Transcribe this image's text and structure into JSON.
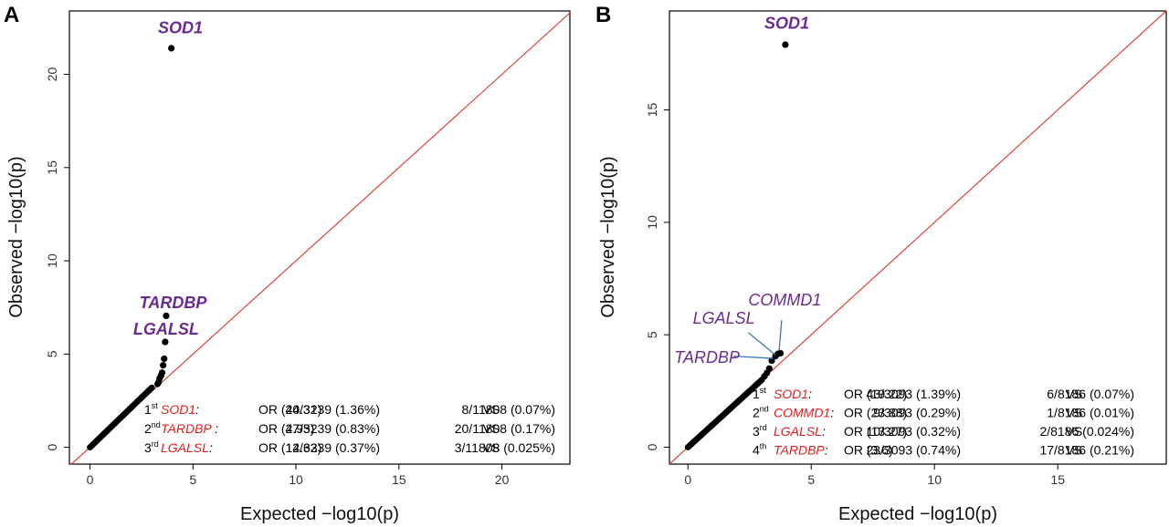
{
  "chart_data": [
    {
      "type": "scatter",
      "panel_label": "A",
      "xlabel": "Expected  −log10(p)",
      "ylabel": "Observed  −log10(p)",
      "xlim": [
        -1,
        23.3
      ],
      "ylim": [
        -0.9,
        23.4
      ],
      "x_ticks": [
        0,
        5,
        10,
        15,
        20
      ],
      "y_ticks": [
        0,
        5,
        10,
        15,
        20
      ],
      "diagonal_color": "#e0403a",
      "point_color": "#000000",
      "tail_x_max": 3.0,
      "tail_y_max": 3.2,
      "points": [
        {
          "x": 3.28,
          "y": 3.4
        },
        {
          "x": 3.33,
          "y": 3.5
        },
        {
          "x": 3.38,
          "y": 3.7
        },
        {
          "x": 3.45,
          "y": 3.85
        },
        {
          "x": 3.5,
          "y": 4.0
        },
        {
          "x": 3.55,
          "y": 4.4
        },
        {
          "x": 3.6,
          "y": 4.75
        },
        {
          "x": 3.65,
          "y": 5.65
        },
        {
          "x": 3.7,
          "y": 7.05
        },
        {
          "x": 3.95,
          "y": 21.4
        }
      ],
      "annotations": [
        {
          "text": "SOD1",
          "x": 3.3,
          "y": 22.2
        },
        {
          "text": "TARDBP",
          "x": 2.4,
          "y": 7.45
        },
        {
          "text": "LGALSL",
          "x": 2.1,
          "y": 6.05
        }
      ],
      "table": [
        {
          "rank": "1",
          "sup": "st",
          "gene": "SOD1",
          "sep": ":",
          "or": "OR (20.31)",
          "cases": "44/3239 (1.36%)",
          "vs": "VS",
          "controls": "8/11808 (0.07%)"
        },
        {
          "rank": "2",
          "sup": "nd",
          "gene": "TARDBP",
          "sep": " :",
          "or": "OR (4.95)",
          "cases": "27/3239 (0.83%)",
          "vs": "VS",
          "controls": "20/11808 (0.17%)"
        },
        {
          "rank": "3",
          "sup": "rd",
          "gene": "LGALSL",
          "sep": ":",
          "or": "OR (14.63)",
          "cases": "12/3239 (0.37%)",
          "vs": "VS",
          "controls": "3/11808 (0.025%)"
        }
      ]
    },
    {
      "type": "scatter",
      "panel_label": "B",
      "xlabel": "Expected  −log10(p)",
      "ylabel": "Observed  −log10(p)",
      "xlim": [
        -0.75,
        19.4
      ],
      "ylim": [
        -0.75,
        19.4
      ],
      "x_ticks": [
        0,
        5,
        10,
        15
      ],
      "y_ticks": [
        0,
        5,
        10,
        15
      ],
      "diagonal_color": "#e0403a",
      "point_color": "#000000",
      "tail_x_max": 3.0,
      "tail_y_max": 3.0,
      "points": [
        {
          "x": 3.1,
          "y": 3.15
        },
        {
          "x": 3.2,
          "y": 3.3
        },
        {
          "x": 3.3,
          "y": 3.5
        },
        {
          "x": 3.4,
          "y": 3.85
        },
        {
          "x": 3.55,
          "y": 4.05
        },
        {
          "x": 3.65,
          "y": 4.15
        },
        {
          "x": 3.75,
          "y": 4.18
        },
        {
          "x": 3.95,
          "y": 17.9
        }
      ],
      "annotations": [
        {
          "text": "SOD1",
          "x": 3.1,
          "y": 18.6
        },
        {
          "text": "COMMD1",
          "x": 2.45,
          "y": 6.3
        },
        {
          "text": "LGALSL",
          "x": 0.2,
          "y": 5.5
        },
        {
          "text": "TARDBP",
          "x": -0.55,
          "y": 3.75
        }
      ],
      "leader_lines": [
        {
          "from": [
            3.8,
            5.65
          ],
          "to": [
            3.7,
            4.3
          ]
        },
        {
          "from": [
            2.45,
            5.1
          ],
          "to": [
            3.55,
            4.1
          ]
        },
        {
          "from": [
            1.85,
            4.05
          ],
          "to": [
            3.45,
            3.95
          ]
        }
      ],
      "table": [
        {
          "rank": "1",
          "sup": "st",
          "gene": "SOD1",
          "sep": ":",
          "or": "OR (19.22)",
          "cases": "43/3093 (1.39%)",
          "vs": "VS",
          "controls": "6/8186 (0.07%)"
        },
        {
          "rank": "2",
          "sup": "nd",
          "gene": "COMMD1",
          "sep": ":",
          "or": "OR (23.88)",
          "cases": "9/3093 (0.29%)",
          "vs": "VS",
          "controls": "1/8186 (0.01%)"
        },
        {
          "rank": "3",
          "sup": "rd",
          "gene": "LGALSL",
          "sep": ":",
          "or": "OR (13.27)",
          "cases": "10/3093 (0.32%)",
          "vs": "VS",
          "controls": "2/8186 (0.024%)"
        },
        {
          "rank": "4",
          "sup": "th",
          "gene": "TARDBP",
          "sep": ":",
          "or": "OR (3.6)",
          "cases": "23/3093 (0.74%)",
          "vs": "VS",
          "controls": "17/8186 (0.21%)"
        }
      ]
    }
  ]
}
